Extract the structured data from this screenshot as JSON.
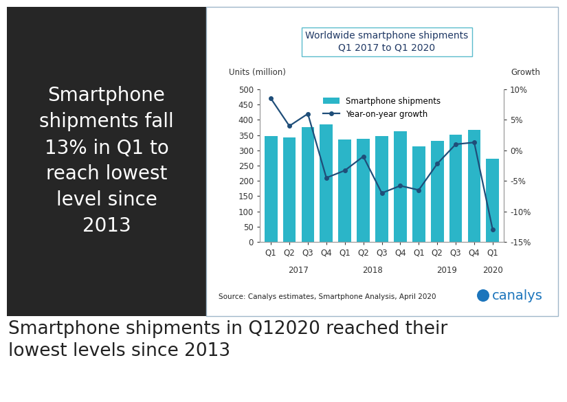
{
  "chart_data": {
    "type": "bar",
    "title": "Worldwide smartphone shipments\nQ1 2017 to Q1 2020",
    "y_label": "Units (million)",
    "y2_label": "Growth",
    "categories": [
      "Q1",
      "Q2",
      "Q3",
      "Q4",
      "Q1",
      "Q2",
      "Q3",
      "Q4",
      "Q1",
      "Q2",
      "Q3",
      "Q4",
      "Q1"
    ],
    "x_groups": [
      {
        "label": "2017",
        "count": 4
      },
      {
        "label": "2018",
        "count": 4
      },
      {
        "label": "2019",
        "count": 4
      },
      {
        "label": "2020",
        "count": 1
      }
    ],
    "series": [
      {
        "name": "Smartphone shipments",
        "type": "bar",
        "color": "#2bb5c8",
        "values": [
          347,
          342,
          376,
          385,
          335,
          338,
          347,
          362,
          313,
          331,
          352,
          368,
          272
        ]
      },
      {
        "name": "Year-on-year growth",
        "type": "line",
        "color": "#1f4e79",
        "marker": "o",
        "axis": "y2",
        "values": [
          8.5,
          4,
          6,
          -4.5,
          -3.3,
          -1,
          -7,
          -5.8,
          -6.5,
          -2.2,
          1,
          1.3,
          -13
        ]
      }
    ],
    "ylim": [
      0,
      500
    ],
    "yticks": [
      0,
      50,
      100,
      150,
      200,
      250,
      300,
      350,
      400,
      450,
      500
    ],
    "y2lim": [
      -15,
      10
    ],
    "y2ticks": [
      {
        "value": -15,
        "label": "-15%"
      },
      {
        "value": -10,
        "label": "-10%"
      },
      {
        "value": -5,
        "label": "-5%"
      },
      {
        "value": 0,
        "label": "0%"
      },
      {
        "value": 5,
        "label": "5%"
      },
      {
        "value": 10,
        "label": "10%"
      }
    ],
    "legend": "upper center",
    "grid": false,
    "source": "Source: Canalys estimates, Smartphone Analysis, April 2020",
    "logo": "canalys"
  },
  "panel_text": "Smartphone\nshipments fall\n13% in Q1 to\nreach lowest\nlevel since\n2013",
  "caption": "Smartphone shipments in Q12020 reached their lowest levels since 2013"
}
